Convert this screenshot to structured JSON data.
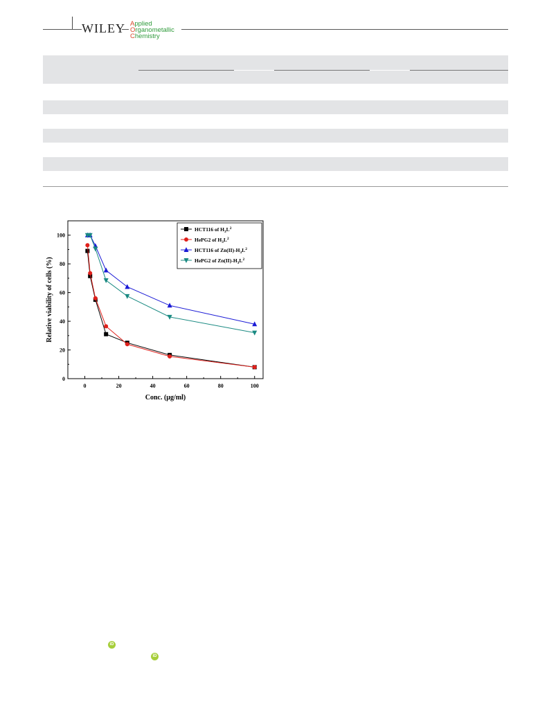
{
  "header": {
    "publisher": "WILEY",
    "journal_lines": [
      "Applied",
      "Organometallic",
      "Chemistry"
    ]
  },
  "chart_data": {
    "type": "line",
    "xlabel": "Conc. (µg/ml)",
    "ylabel": "Relative viability of cells (%)",
    "xlim": [
      -10,
      105
    ],
    "ylim": [
      0,
      110
    ],
    "xticks": [
      0,
      20,
      40,
      60,
      80,
      100
    ],
    "yticks": [
      0,
      20,
      40,
      60,
      80,
      100
    ],
    "legend_position": "top-right",
    "series": [
      {
        "name": "HCT116 of H3L2",
        "color": "#000000",
        "marker": "square",
        "x": [
          1.56,
          3.125,
          6.25,
          12.5,
          25,
          50,
          100
        ],
        "y": [
          89,
          71.5,
          55,
          31,
          25,
          16.5,
          8
        ]
      },
      {
        "name": "HePG2 of H3L2",
        "color": "#e0201b",
        "marker": "circle",
        "x": [
          1.56,
          3.125,
          6.25,
          12.5,
          25,
          50,
          100
        ],
        "y": [
          93,
          73.5,
          56,
          36.5,
          24,
          15.5,
          8
        ]
      },
      {
        "name": "HCT116 of Zn(II)-H3L2",
        "color": "#1a1ad6",
        "marker": "triangle-up",
        "x": [
          1.56,
          3.125,
          6.25,
          12.5,
          25,
          50,
          100
        ],
        "y": [
          100,
          100,
          92.5,
          75.5,
          64,
          51,
          38
        ]
      },
      {
        "name": "HePG2 of Zn(II)-H3L2",
        "color": "#1a8a82",
        "marker": "triangle-down",
        "x": [
          1.56,
          3.125,
          6.25,
          12.5,
          25,
          50,
          100
        ],
        "y": [
          100,
          100,
          90.5,
          68.5,
          57.5,
          43,
          32
        ]
      }
    ]
  }
}
